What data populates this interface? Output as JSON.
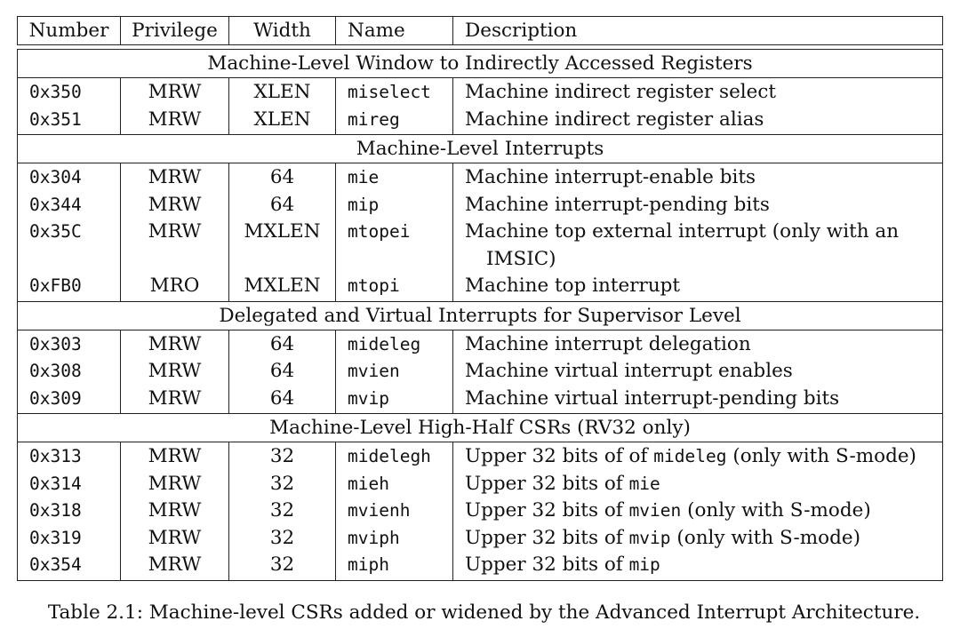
{
  "headers": {
    "number": "Number",
    "privilege": "Privilege",
    "width": "Width",
    "name": "Name",
    "description": "Description"
  },
  "sections": [
    {
      "title": "Machine-Level Window to Indirectly Accessed Registers",
      "rows": [
        {
          "number": "0x350",
          "privilege": "MRW",
          "width": "XLEN",
          "name": "miselect",
          "desc": [
            {
              "t": "Machine indirect register select"
            }
          ]
        },
        {
          "number": "0x351",
          "privilege": "MRW",
          "width": "XLEN",
          "name": "mireg",
          "desc": [
            {
              "t": "Machine indirect register alias"
            }
          ]
        }
      ]
    },
    {
      "title": "Machine-Level Interrupts",
      "rows": [
        {
          "number": "0x304",
          "privilege": "MRW",
          "width": "64",
          "name": "mie",
          "desc": [
            {
              "t": "Machine interrupt-enable bits"
            }
          ]
        },
        {
          "number": "0x344",
          "privilege": "MRW",
          "width": "64",
          "name": "mip",
          "desc": [
            {
              "t": "Machine interrupt-pending bits"
            }
          ]
        },
        {
          "number": "0x35C",
          "privilege": "MRW",
          "width": "MXLEN",
          "name": "mtopei",
          "desc": [
            {
              "t": "Machine top external interrupt (only with an"
            }
          ],
          "desc_cont": "IMSIC)"
        },
        {
          "number": "0xFB0",
          "privilege": "MRO",
          "width": "MXLEN",
          "name": "mtopi",
          "desc": [
            {
              "t": "Machine top interrupt"
            }
          ]
        }
      ]
    },
    {
      "title": "Delegated and Virtual Interrupts for Supervisor Level",
      "rows": [
        {
          "number": "0x303",
          "privilege": "MRW",
          "width": "64",
          "name": "mideleg",
          "desc": [
            {
              "t": "Machine interrupt delegation"
            }
          ]
        },
        {
          "number": "0x308",
          "privilege": "MRW",
          "width": "64",
          "name": "mvien",
          "desc": [
            {
              "t": "Machine virtual interrupt enables"
            }
          ]
        },
        {
          "number": "0x309",
          "privilege": "MRW",
          "width": "64",
          "name": "mvip",
          "desc": [
            {
              "t": "Machine virtual interrupt-pending bits"
            }
          ]
        }
      ]
    },
    {
      "title": "Machine-Level High-Half CSRs (RV32 only)",
      "rows": [
        {
          "number": "0x313",
          "privilege": "MRW",
          "width": "32",
          "name": "midelegh",
          "desc": [
            {
              "t": "Upper 32 bits of of "
            },
            {
              "m": "mideleg"
            },
            {
              "t": " (only with S-mode)"
            }
          ]
        },
        {
          "number": "0x314",
          "privilege": "MRW",
          "width": "32",
          "name": "mieh",
          "desc": [
            {
              "t": "Upper 32 bits of "
            },
            {
              "m": "mie"
            }
          ]
        },
        {
          "number": "0x318",
          "privilege": "MRW",
          "width": "32",
          "name": "mvienh",
          "desc": [
            {
              "t": "Upper 32 bits of "
            },
            {
              "m": "mvien"
            },
            {
              "t": " (only with S-mode)"
            }
          ]
        },
        {
          "number": "0x319",
          "privilege": "MRW",
          "width": "32",
          "name": "mviph",
          "desc": [
            {
              "t": "Upper 32 bits of "
            },
            {
              "m": "mvip"
            },
            {
              "t": " (only with S-mode)"
            }
          ]
        },
        {
          "number": "0x354",
          "privilege": "MRW",
          "width": "32",
          "name": "miph",
          "desc": [
            {
              "t": "Upper 32 bits of "
            },
            {
              "m": "mip"
            }
          ]
        }
      ]
    }
  ],
  "caption": "Table 2.1: Machine-level CSRs added or widened by the Advanced Interrupt Architecture."
}
